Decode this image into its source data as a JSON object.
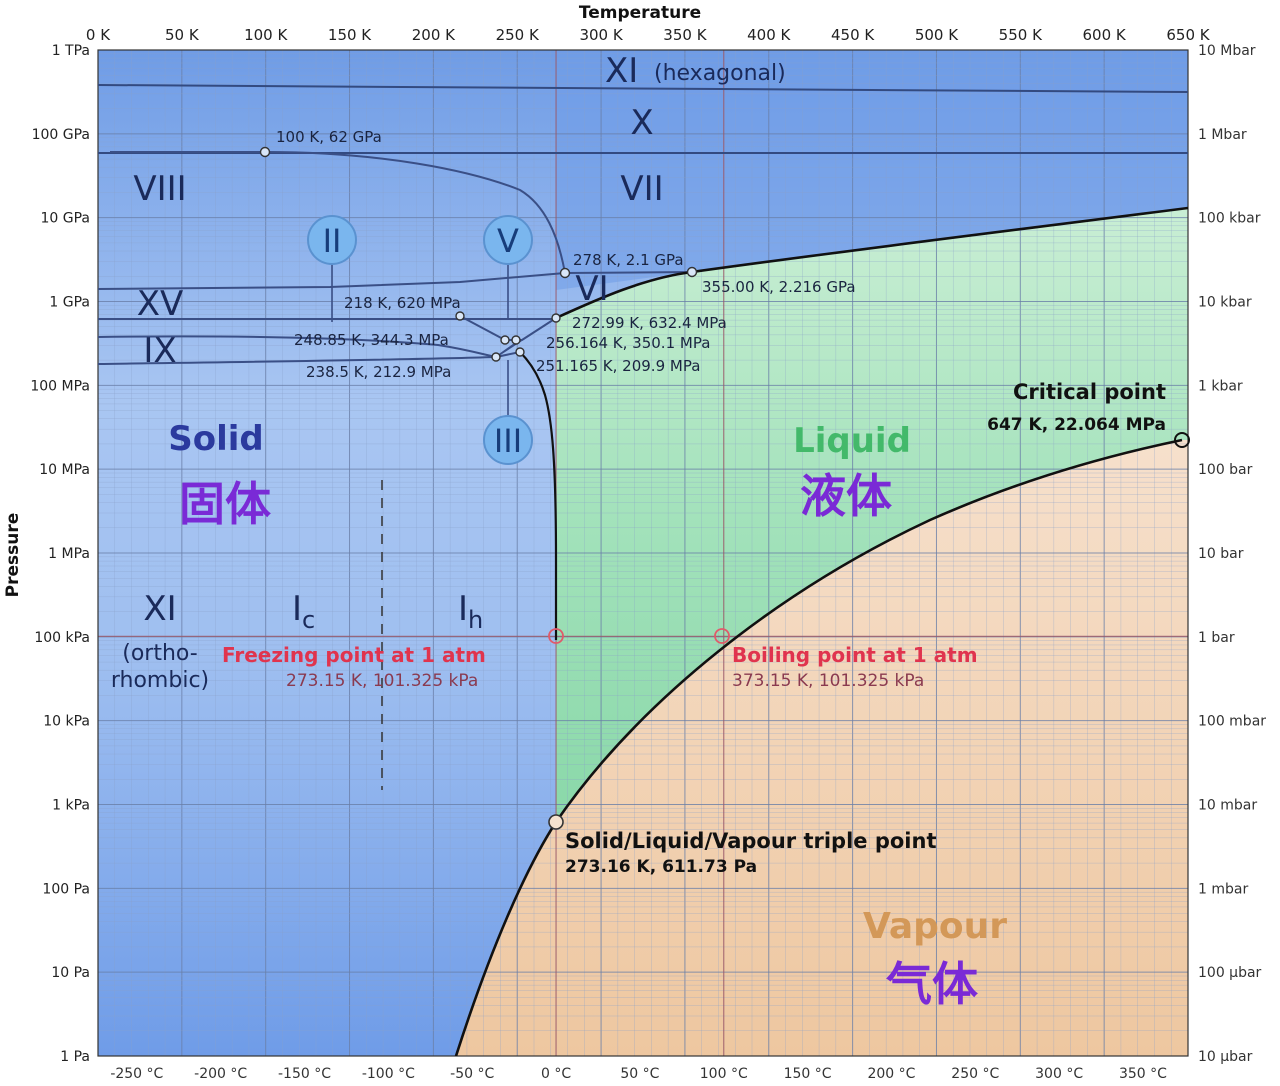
{
  "chart_data": {
    "type": "phase-diagram",
    "title": "",
    "xlabel": "Temperature",
    "ylabel": "Pressure",
    "x_ticks_top": [
      "0 K",
      "50 K",
      "100 K",
      "150 K",
      "200 K",
      "250 K",
      "300 K",
      "350 K",
      "400 K",
      "450 K",
      "500 K",
      "550 K",
      "600 K",
      "650 K"
    ],
    "x_ticks_bottom": [
      "-250 °C",
      "-200 °C",
      "-150 °C",
      "-100 °C",
      "-50 °C",
      "0 °C",
      "50 °C",
      "100 °C",
      "150 °C",
      "200 °C",
      "250 °C",
      "300 °C",
      "350 °C"
    ],
    "y_ticks_left": [
      "1 TPa",
      "100 GPa",
      "10 GPa",
      "1 GPa",
      "100 MPa",
      "10 MPa",
      "1 MPa",
      "100 kPa",
      "10 kPa",
      "1 kPa",
      "100 Pa",
      "10 Pa",
      "1 Pa"
    ],
    "y_ticks_right": [
      "10 Mbar",
      "1 Mbar",
      "100 kbar",
      "10 kbar",
      "1 kbar",
      "100 bar",
      "10 bar",
      "1 bar",
      "100 mbar",
      "10 mbar",
      "1 mbar",
      "100 µbar",
      "10 µbar"
    ],
    "xlim": [
      0,
      650
    ],
    "ylim_log10_Pa": [
      0,
      12
    ],
    "regions": [
      {
        "name": "Solid",
        "name_zh": "固体",
        "color": "#2b3a9e",
        "zh_color": "#7a2ad6"
      },
      {
        "name": "Liquid",
        "name_zh": "液体",
        "color": "#43b96a",
        "zh_color": "#7a2ad6"
      },
      {
        "name": "Vapour",
        "name_zh": "气体",
        "color": "#d39858",
        "zh_color": "#7a2ad6"
      }
    ],
    "ice_phases": [
      "XI (hexagonal)",
      "X",
      "VIII",
      "VII",
      "VI",
      "XV",
      "IX",
      "II",
      "V",
      "III",
      "XI",
      "(ortho-",
      "rhombic)",
      "Ic",
      "Ih"
    ],
    "points": [
      {
        "label": "100 K, 62 GPa",
        "T": 100,
        "P": 62000000000.0
      },
      {
        "label": "278 K, 2.1 GPa",
        "T": 278,
        "P": 2100000000.0
      },
      {
        "label": "355.00 K, 2.216 GPa",
        "T": 355,
        "P": 2216000000.0
      },
      {
        "label": "218 K, 620 MPa",
        "T": 218,
        "P": 620000000.0
      },
      {
        "label": "272.99 K, 632.4 MPa",
        "T": 272.99,
        "P": 632400000.0
      },
      {
        "label": "248.85 K, 344.3 MPa",
        "T": 248.85,
        "P": 344300000.0
      },
      {
        "label": "256.164 K, 350.1 MPa",
        "T": 256.164,
        "P": 350100000.0
      },
      {
        "label": "238.5 K, 212.9 MPa",
        "T": 238.5,
        "P": 212900000.0
      },
      {
        "label": "251.165 K, 209.9 MPa",
        "T": 251.165,
        "P": 209900000.0
      }
    ],
    "annotations": {
      "critical_title": "Critical point",
      "critical_value": "647 K, 22.064 MPa",
      "freezing_title": "Freezing point at 1 atm",
      "freezing_value": "273.15 K, 101.325 kPa",
      "boiling_title": "Boiling point at 1 atm",
      "boiling_value": "373.15 K, 101.325 kPa",
      "triple_title": "Solid/Liquid/Vapour triple point",
      "triple_value": "273.16 K, 611.73 Pa"
    },
    "grid": true,
    "log_scale_y": true,
    "colors": {
      "solid_bg": "#7fa8e6",
      "liquid_bg": "#a6e3bf",
      "vapour_bg": "#f1d3b2",
      "boundary": "#111111",
      "phase_circle": "#7ab6ee"
    }
  }
}
